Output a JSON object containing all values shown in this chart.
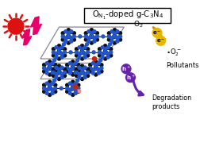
{
  "bg_color": "#ffffff",
  "sun_color": "#dd1111",
  "lightning_color": "#e8006a",
  "node_black": "#111111",
  "node_blue": "#2255cc",
  "node_red": "#cc2200",
  "node_pink": "#ff8888",
  "bond_color": "#111111",
  "lattice_color": "#888899",
  "electron_color": "#d4a800",
  "electron_fill": "#e6b800",
  "hole_color": "#6622aa",
  "arrow_gold": "#c8900a",
  "arrow_purple": "#6622aa",
  "o2_label": "O$_2$",
  "superoxide_label": "$\\bullet$O$_2^-$",
  "pollutants_label": "Pollutants",
  "degradation_label": "Degradation\nproducts",
  "e_label": "e$^-$",
  "h_label": "h$^+$",
  "title_text": "O$_{N_1}$-doped g-C$_3$N$_4$"
}
